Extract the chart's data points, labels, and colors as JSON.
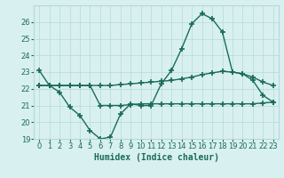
{
  "line1_x": [
    0,
    1,
    2,
    3,
    4,
    5,
    6,
    7,
    8,
    9,
    10,
    11,
    12,
    13,
    14,
    15,
    16,
    17,
    18,
    19,
    20,
    21,
    22,
    23
  ],
  "line1_y": [
    23.1,
    22.2,
    21.8,
    20.9,
    20.4,
    19.5,
    19.0,
    19.1,
    20.5,
    21.1,
    21.0,
    21.0,
    22.3,
    23.1,
    24.4,
    25.9,
    26.5,
    26.2,
    25.4,
    23.0,
    22.9,
    22.5,
    21.6,
    21.2
  ],
  "line2_x": [
    0,
    1,
    2,
    3,
    4,
    5,
    6,
    7,
    8,
    9,
    10,
    11,
    12,
    13,
    14,
    15,
    16,
    17,
    18,
    19,
    20,
    21,
    22,
    23
  ],
  "line2_y": [
    22.2,
    22.2,
    22.2,
    22.2,
    22.2,
    22.2,
    21.0,
    21.0,
    21.0,
    21.05,
    21.1,
    21.1,
    21.1,
    21.1,
    21.1,
    21.1,
    21.1,
    21.1,
    21.1,
    21.1,
    21.1,
    21.1,
    21.15,
    21.2
  ],
  "line3_x": [
    0,
    1,
    2,
    3,
    4,
    5,
    6,
    7,
    8,
    9,
    10,
    11,
    12,
    13,
    14,
    15,
    16,
    17,
    18,
    19,
    20,
    21,
    22,
    23
  ],
  "line3_y": [
    22.2,
    22.2,
    22.2,
    22.2,
    22.2,
    22.2,
    22.2,
    22.2,
    22.25,
    22.3,
    22.35,
    22.4,
    22.45,
    22.5,
    22.6,
    22.7,
    22.85,
    22.95,
    23.05,
    23.0,
    22.9,
    22.7,
    22.4,
    22.2
  ],
  "line_color": "#1a6b5a",
  "bg_color": "#d8f0f0",
  "grid_color": "#b8d8d8",
  "xlabel": "Humidex (Indice chaleur)",
  "ylim": [
    19.0,
    27.0
  ],
  "xlim": [
    -0.5,
    23.5
  ],
  "yticks": [
    19,
    20,
    21,
    22,
    23,
    24,
    25,
    26
  ],
  "xticks": [
    0,
    1,
    2,
    3,
    4,
    5,
    6,
    7,
    8,
    9,
    10,
    11,
    12,
    13,
    14,
    15,
    16,
    17,
    18,
    19,
    20,
    21,
    22,
    23
  ],
  "marker": "+",
  "markersize": 4,
  "markeredgewidth": 1.2,
  "linewidth": 1.0,
  "xlabel_fontsize": 7,
  "tick_fontsize": 6
}
